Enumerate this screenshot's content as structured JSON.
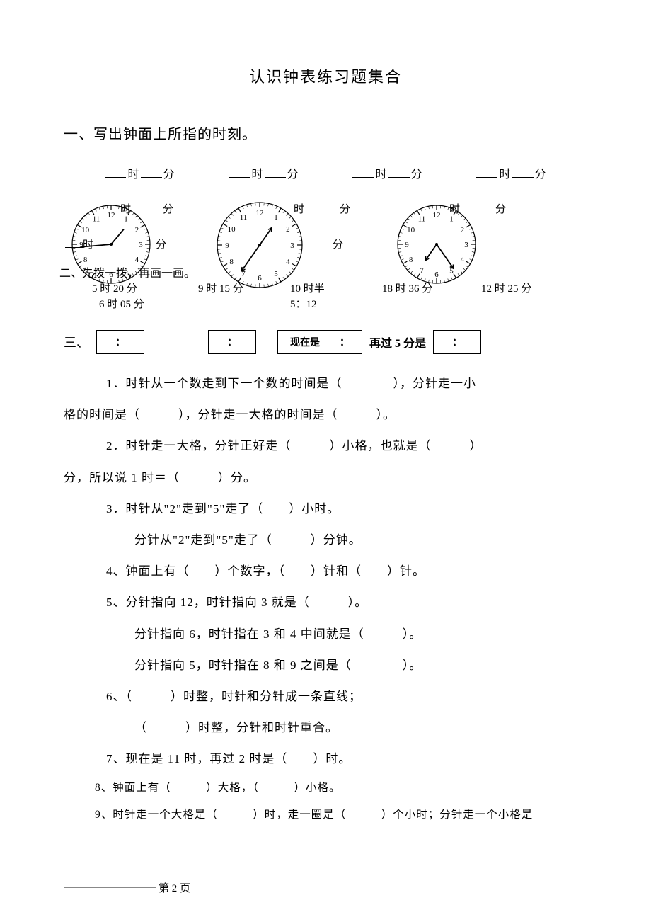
{
  "title": "认识钟表练习题集合",
  "section1": {
    "heading": "一、写出钟面上所指的时刻。",
    "label_hour": "时",
    "label_min": "分"
  },
  "clocks": {
    "clock1": {
      "numbers": [
        "12",
        "1",
        "2",
        "3",
        "4",
        "5",
        "6",
        "7",
        "8",
        "9",
        "10",
        "11"
      ],
      "tick_count": 60,
      "radius": 55,
      "num_radius": 42,
      "hour_hand": {
        "angle": 40,
        "len": 28
      },
      "min_hand": {
        "angle": 265,
        "len": 42
      },
      "stroke": "#000000"
    },
    "clock2": {
      "numbers": [
        "12",
        "1",
        "2",
        "3",
        "4",
        "5",
        "6",
        "7",
        "8",
        "9",
        "10",
        "11"
      ],
      "tick_count": 60,
      "radius": 60,
      "num_radius": 46,
      "hour_hand": {
        "angle": 35,
        "len": 30,
        "arrow": true
      },
      "min_hand": {
        "angle": 215,
        "len": 45,
        "arrow": true
      },
      "stroke": "#000000"
    },
    "clock3": {
      "numbers": [
        "12",
        "1",
        "2",
        "3",
        "4",
        "5",
        "6",
        "7",
        "8",
        "9",
        "10",
        "11"
      ],
      "tick_count": 60,
      "radius": 55,
      "num_radius": 42,
      "hour_hand": {
        "angle": 215,
        "len": 28,
        "arrow": true
      },
      "min_hand": {
        "angle": 145,
        "len": 42,
        "arrow": true
      },
      "stroke": "#000000"
    }
  },
  "overlay": {
    "row2_items": [
      "时",
      "分",
      "时",
      "分",
      "时",
      "分"
    ],
    "row3_items": [
      "时",
      "分",
      "分"
    ],
    "section2_text": "二、先拨一拨，再画一画。",
    "times": [
      "5 时 20 分",
      "9 时 15 分",
      "10 时半",
      "18 时 36 分",
      "12 时 25 分"
    ],
    "extra1": "6 时 05 分",
    "extra2": "5：12"
  },
  "boxes": {
    "sec3_label": "三、",
    "colon": "：",
    "now_is": "现在是　　：",
    "after5": "再过 5 分是"
  },
  "questions": {
    "q1a": "1．时针从一个数走到下一个数的时间是（　　　　），分针走一小",
    "q1b": "格的时间是（　　　），分针走一大格的时间是（　　　）。",
    "q2a": "2．时针走一大格，分针正好走（　　　）小格，也就是（　　　）",
    "q2b": "分，所以说 1 时＝（　　　）分。",
    "q3a": "3．时针从\"2\"走到\"5\"走了（　　）小时。",
    "q3b": "分针从\"2\"走到\"5\"走了（　　　）分钟。",
    "q4": "4、钟面上有（　　）个数字，（　　）针和（　　）针。",
    "q5a": "5、分针指向 12，时针指向 3 就是（　　　）。",
    "q5b": "分针指向 6，时针指在 3 和 4 中间就是（　　　）。",
    "q5c": "分针指向 5，时针指在 8 和 9 之间是（　　　　）。",
    "q6a": "6、（　　　）时整，时针和分针成一条直线；",
    "q6b": "（　　　）时整，分针和时针重合。",
    "q7": "7、现在是 11 时，再过 2 时是（　　）时。",
    "q8": "8、钟面上有（　　　）大格，（　　　）小格。",
    "q9": "9、时针走一个大格是（　　　）时，走一圈是（　　　）个小时；分针走一个小格是"
  },
  "footer": {
    "page_label": "第 2 页"
  }
}
